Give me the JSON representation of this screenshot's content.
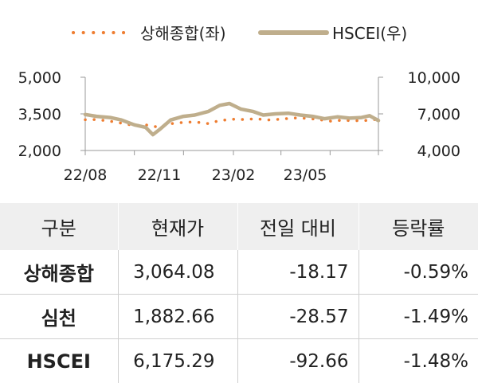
{
  "chart_data": {
    "type": "line",
    "x_ticks": [
      "22/08",
      "22/11",
      "23/02",
      "23/05"
    ],
    "x_range": [
      "2022-08-01",
      "2023-07-31"
    ],
    "y_left": {
      "ticks": [
        "5,000",
        "3,500",
        "2,000"
      ],
      "range": [
        2000,
        5000
      ]
    },
    "y_right": {
      "ticks": [
        "10,000",
        "7,000",
        "4,000"
      ],
      "range": [
        4000,
        10000
      ]
    },
    "legend_position": "top",
    "series": [
      {
        "name": "상해종합(좌)",
        "axis": "left",
        "style": "dotted",
        "color": "#ee7d31",
        "points": [
          [
            "2022-08-01",
            3260
          ],
          [
            "2022-08-15",
            3270
          ],
          [
            "2022-09-01",
            3200
          ],
          [
            "2022-09-15",
            3120
          ],
          [
            "2022-10-01",
            3020
          ],
          [
            "2022-10-15",
            3050
          ],
          [
            "2022-11-01",
            2950
          ],
          [
            "2022-11-15",
            3100
          ],
          [
            "2022-12-01",
            3150
          ],
          [
            "2022-12-15",
            3170
          ],
          [
            "2023-01-01",
            3100
          ],
          [
            "2023-01-15",
            3230
          ],
          [
            "2023-02-01",
            3280
          ],
          [
            "2023-02-15",
            3270
          ],
          [
            "2023-03-01",
            3300
          ],
          [
            "2023-03-15",
            3250
          ],
          [
            "2023-04-01",
            3280
          ],
          [
            "2023-04-15",
            3330
          ],
          [
            "2023-05-01",
            3320
          ],
          [
            "2023-05-15",
            3280
          ],
          [
            "2023-06-01",
            3200
          ],
          [
            "2023-06-15",
            3240
          ],
          [
            "2023-07-01",
            3220
          ],
          [
            "2023-07-15",
            3230
          ],
          [
            "2023-07-31",
            3280
          ]
        ]
      },
      {
        "name": "HSCEI(우)",
        "axis": "right",
        "style": "solid",
        "color": "#bfae8c",
        "points": [
          [
            "2022-08-01",
            6950
          ],
          [
            "2022-08-15",
            6800
          ],
          [
            "2022-09-01",
            6700
          ],
          [
            "2022-09-15",
            6500
          ],
          [
            "2022-10-01",
            6100
          ],
          [
            "2022-10-15",
            5900
          ],
          [
            "2022-10-24",
            5300
          ],
          [
            "2022-11-01",
            5700
          ],
          [
            "2022-11-15",
            6500
          ],
          [
            "2022-12-01",
            6800
          ],
          [
            "2022-12-15",
            6900
          ],
          [
            "2023-01-01",
            7200
          ],
          [
            "2023-01-15",
            7700
          ],
          [
            "2023-01-27",
            7850
          ],
          [
            "2023-02-10",
            7400
          ],
          [
            "2023-02-25",
            7200
          ],
          [
            "2023-03-10",
            6900
          ],
          [
            "2023-03-25",
            7000
          ],
          [
            "2023-04-10",
            7050
          ],
          [
            "2023-04-25",
            6900
          ],
          [
            "2023-05-10",
            6800
          ],
          [
            "2023-05-25",
            6600
          ],
          [
            "2023-06-10",
            6750
          ],
          [
            "2023-06-25",
            6650
          ],
          [
            "2023-07-10",
            6700
          ],
          [
            "2023-07-20",
            6850
          ],
          [
            "2023-07-31",
            6450
          ]
        ]
      }
    ]
  },
  "table": {
    "headers": [
      "구분",
      "현재가",
      "전일 대비",
      "등락률"
    ],
    "rows": [
      {
        "name": "상해종합",
        "price": "3,064.08",
        "change": "-18.17",
        "rate": "-0.59%"
      },
      {
        "name": "심천",
        "price": "1,882.66",
        "change": "-28.57",
        "rate": "-1.49%"
      },
      {
        "name": "HSCEI",
        "price": "6,175.29",
        "change": "-92.66",
        "rate": "-1.48%"
      }
    ]
  }
}
